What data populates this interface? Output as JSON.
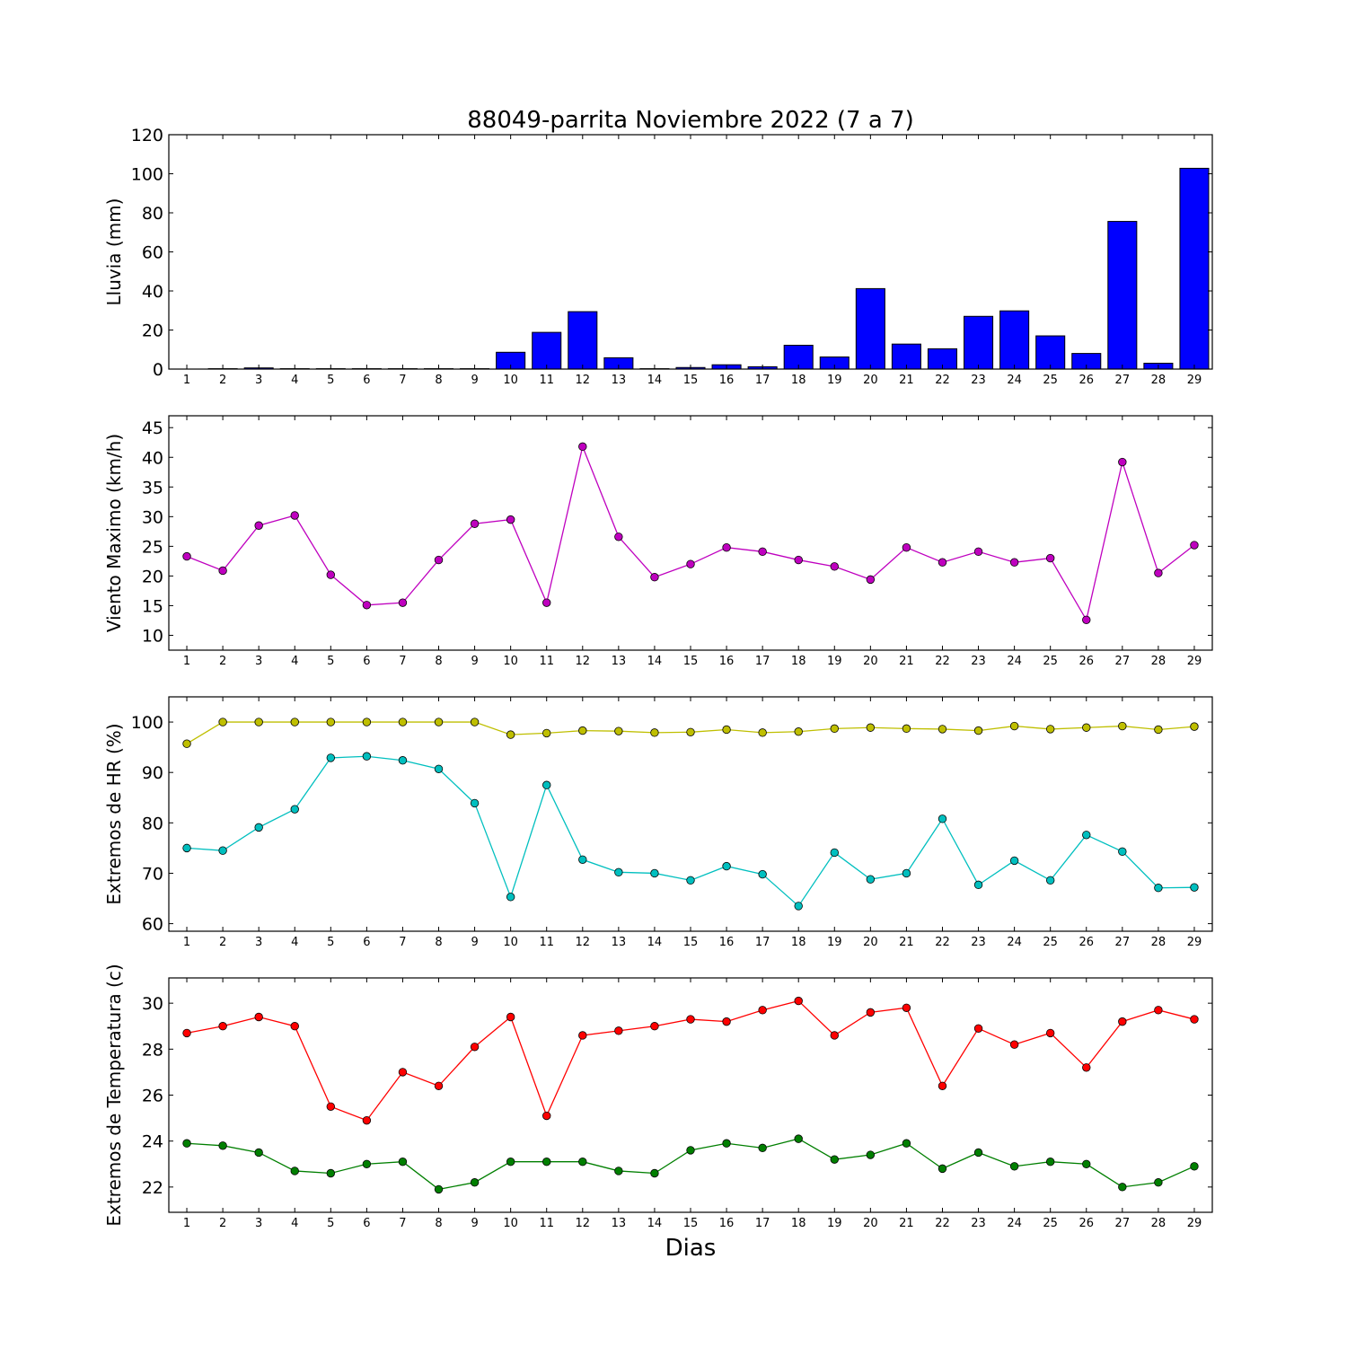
{
  "chart_data": {
    "title": "88049-parrita Noviembre 2022  (7 a 7)",
    "xlabel": "Dias",
    "days": [
      "1",
      "2",
      "3",
      "4",
      "5",
      "6",
      "7",
      "8",
      "9",
      "10",
      "11",
      "12",
      "13",
      "14",
      "15",
      "16",
      "17",
      "18",
      "19",
      "20",
      "21",
      "22",
      "23",
      "24",
      "25",
      "26",
      "27",
      "28",
      "29"
    ],
    "panels": [
      {
        "type": "bar",
        "ylabel": "Lluvia (mm)",
        "ylim": [
          0,
          120
        ],
        "yticks": [
          0,
          20,
          40,
          60,
          80,
          100,
          120
        ],
        "series": [
          {
            "color": "#0000ff",
            "values": [
              0,
              0.2,
              0.6,
              0.2,
              0.2,
              0.2,
              0.2,
              0.2,
              0.2,
              8.6,
              18.8,
              29.4,
              5.8,
              0.2,
              0.8,
              2.2,
              1.2,
              12.2,
              6.2,
              41.2,
              12.8,
              10.4,
              27.0,
              29.8,
              17.0,
              8.0,
              75.6,
              3.0,
              102.8
            ]
          }
        ]
      },
      {
        "type": "line",
        "ylabel": "Viento Maximo (km/h)",
        "ylim": [
          7.5,
          47
        ],
        "yticks": [
          10,
          15,
          20,
          25,
          30,
          35,
          40,
          45
        ],
        "series": [
          {
            "color": "#bf00bf",
            "values": [
              23.3,
              20.9,
              28.5,
              30.2,
              20.2,
              15.1,
              15.5,
              22.7,
              28.8,
              29.5,
              15.5,
              41.8,
              26.6,
              19.8,
              22.0,
              24.8,
              24.1,
              22.7,
              21.6,
              19.4,
              24.8,
              22.3,
              24.1,
              22.3,
              23.0,
              12.6,
              39.2,
              20.5,
              25.2
            ]
          }
        ]
      },
      {
        "type": "line",
        "ylabel": "Extremos de HR (%)",
        "ylim": [
          58.5,
          105
        ],
        "yticks": [
          60,
          70,
          80,
          90,
          100
        ],
        "series": [
          {
            "color": "#bfbf00",
            "values": [
              95.7,
              100,
              100,
              100,
              100,
              100,
              100,
              100,
              100,
              97.5,
              97.8,
              98.3,
              98.2,
              97.9,
              98.0,
              98.5,
              97.9,
              98.1,
              98.7,
              98.9,
              98.7,
              98.6,
              98.3,
              99.2,
              98.6,
              98.9,
              99.2,
              98.5,
              99.1
            ]
          },
          {
            "color": "#00bfbf",
            "values": [
              75.0,
              74.5,
              79.1,
              82.7,
              92.9,
              93.2,
              92.4,
              90.7,
              83.9,
              65.3,
              87.5,
              72.7,
              70.2,
              70.0,
              68.6,
              71.4,
              69.8,
              63.5,
              74.1,
              68.8,
              70.0,
              80.8,
              67.7,
              72.5,
              68.6,
              77.6,
              74.3,
              67.1,
              67.2
            ]
          }
        ]
      },
      {
        "type": "line",
        "ylabel": "Extremos de Temperatura (c)",
        "ylim": [
          20.9,
          31.1
        ],
        "yticks": [
          22,
          24,
          26,
          28,
          30
        ],
        "series": [
          {
            "color": "#ff0000",
            "values": [
              28.7,
              29.0,
              29.4,
              29.0,
              25.5,
              24.9,
              27.0,
              26.4,
              28.1,
              29.4,
              25.1,
              28.6,
              28.8,
              29.0,
              29.3,
              29.2,
              29.7,
              30.1,
              28.6,
              29.6,
              29.8,
              26.4,
              28.9,
              28.2,
              28.7,
              27.2,
              29.2,
              29.7,
              29.3
            ]
          },
          {
            "color": "#007f00",
            "values": [
              23.9,
              23.8,
              23.5,
              22.7,
              22.6,
              23.0,
              23.1,
              21.9,
              22.2,
              23.1,
              23.1,
              23.1,
              22.7,
              22.6,
              23.6,
              23.9,
              23.7,
              24.1,
              23.2,
              23.4,
              23.9,
              22.8,
              23.5,
              22.9,
              23.1,
              23.0,
              22.0,
              22.2,
              22.9
            ]
          }
        ]
      }
    ]
  }
}
